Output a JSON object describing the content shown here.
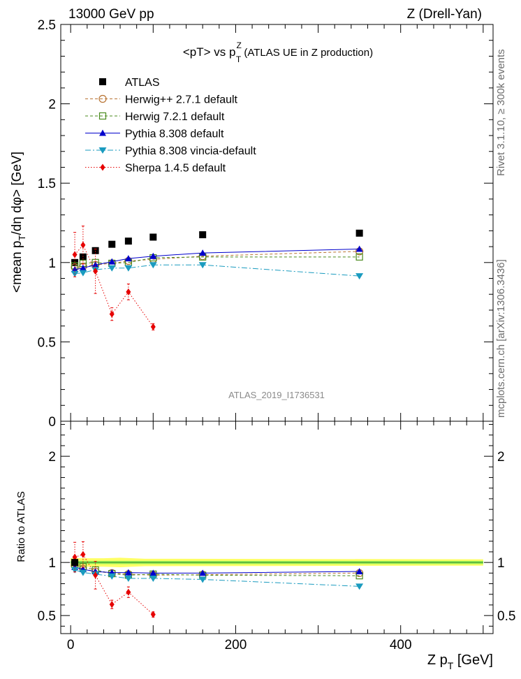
{
  "header": {
    "left": "13000 GeV pp",
    "right": "Z (Drell-Yan)"
  },
  "side_labels": {
    "rivet": "Rivet 3.1.10, ≥ 300k events",
    "mcplots": "mcplots.cern.ch [arXiv:1306.3436]"
  },
  "chart_data": {
    "type": "scatter",
    "title": {
      "main": "<pT> vs p",
      "sup": "Z",
      "sub": "T",
      "suffix": " (ATLAS UE in Z production)"
    },
    "watermark": "ATLAS_2019_I1736531",
    "xlabel": {
      "main": "Z p",
      "sub": "T",
      "suffix": " [GeV]"
    },
    "ylabel": {
      "p1": "<mean p",
      "sub": "T",
      "p2": "/dη dφ> [GeV]"
    },
    "ratio_ylabel": "Ratio to ATLAS",
    "xlim": [
      -12,
      512
    ],
    "ylim": [
      0,
      2.5
    ],
    "ratio_ylim": [
      0.33,
      2.33
    ],
    "xticks": [
      0,
      200,
      400
    ],
    "yticks": [
      0,
      0.5,
      1,
      1.5,
      2,
      2.5
    ],
    "ratio_yticks": [
      0.5,
      1,
      2
    ],
    "x": [
      5,
      15,
      30,
      50,
      70,
      100,
      160,
      350
    ],
    "series": [
      {
        "name": "ATLAS",
        "color": "#000000",
        "marker": "square-filled",
        "line": "none",
        "x": [
          5,
          15,
          30,
          50,
          70,
          100,
          160,
          350
        ],
        "values": [
          1.0,
          1.035,
          1.075,
          1.115,
          1.135,
          1.16,
          1.175,
          1.185
        ],
        "ratio": [
          1.0,
          1.0,
          1.0,
          1.0,
          1.0,
          1.0,
          1.0,
          1.0
        ]
      },
      {
        "name": "Herwig++ 2.7.1 default",
        "color": "#b87333",
        "marker": "circle-open",
        "line": "dashed",
        "x": [
          5,
          15,
          30,
          50,
          70,
          100,
          160,
          350
        ],
        "values": [
          0.97,
          0.975,
          0.985,
          0.995,
          1.01,
          1.02,
          1.04,
          1.07
        ],
        "ratio": [
          0.97,
          0.94,
          0.915,
          0.9,
          0.89,
          0.88,
          0.885,
          0.9
        ]
      },
      {
        "name": "Herwig 7.2.1 default",
        "color": "#4a8a1e",
        "marker": "square-open",
        "line": "dashed",
        "x": [
          5,
          15,
          30,
          50,
          70,
          100,
          160,
          350
        ],
        "values": [
          0.98,
          0.995,
          1.0,
          0.995,
          1.0,
          1.03,
          1.035,
          1.035
        ],
        "ratio": [
          0.98,
          0.96,
          0.93,
          0.895,
          0.88,
          0.89,
          0.88,
          0.875
        ]
      },
      {
        "name": "Pythia 8.308 default",
        "color": "#0000cc",
        "marker": "triangle-up",
        "line": "solid",
        "x": [
          5,
          15,
          30,
          50,
          70,
          100,
          160,
          350
        ],
        "values": [
          0.955,
          0.965,
          0.985,
          1.005,
          1.025,
          1.04,
          1.06,
          1.085
        ],
        "ratio": [
          0.955,
          0.935,
          0.915,
          0.905,
          0.905,
          0.9,
          0.9,
          0.915
        ]
      },
      {
        "name": "Pythia 8.308 vincia-default",
        "color": "#1a9bbf",
        "marker": "triangle-down",
        "line": "dashdot",
        "x": [
          5,
          15,
          30,
          50,
          70,
          100,
          160,
          350
        ],
        "values": [
          0.93,
          0.935,
          0.955,
          0.965,
          0.965,
          0.985,
          0.985,
          0.915
        ],
        "ratio": [
          0.93,
          0.905,
          0.89,
          0.87,
          0.85,
          0.85,
          0.84,
          0.775
        ]
      },
      {
        "name": "Sherpa 1.4.5 default",
        "color": "#e60000",
        "marker": "diamond",
        "line": "dotted",
        "x": [
          5,
          15,
          30,
          50,
          70,
          100
        ],
        "values": [
          1.05,
          1.11,
          0.945,
          0.675,
          0.815,
          0.595
        ],
        "errors": [
          0.14,
          0.12,
          0.14,
          0.04,
          0.05,
          0.02
        ],
        "ratio": [
          1.05,
          1.075,
          0.88,
          0.605,
          0.72,
          0.51
        ],
        "ratio_errors": [
          0.14,
          0.12,
          0.13,
          0.04,
          0.05,
          0.025
        ]
      }
    ]
  }
}
